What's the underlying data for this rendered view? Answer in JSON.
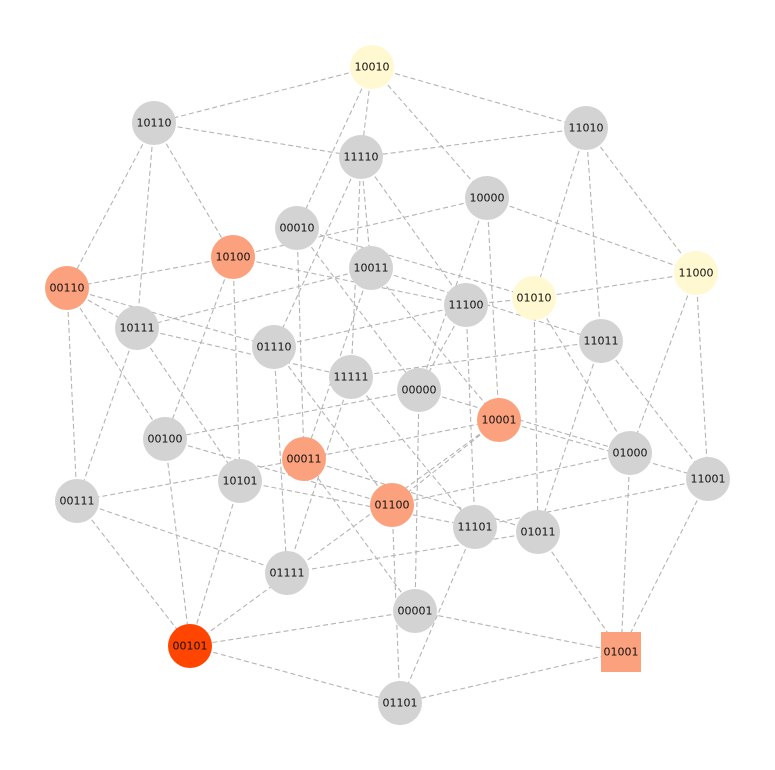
{
  "graph": {
    "colors": {
      "default": "#d3d3d3",
      "pale_yellow": "#fff8d0",
      "salmon": "#fca17d",
      "red_orange": "#ff4500",
      "edge": "#b4b4b4"
    },
    "nodes": [
      {
        "id": "10010",
        "label": "10010",
        "color": "pale_yellow",
        "shape": "circle"
      },
      {
        "id": "10110",
        "label": "10110",
        "color": "default",
        "shape": "circle"
      },
      {
        "id": "11010",
        "label": "11010",
        "color": "default",
        "shape": "circle"
      },
      {
        "id": "11110",
        "label": "11110",
        "color": "default",
        "shape": "circle"
      },
      {
        "id": "10000",
        "label": "10000",
        "color": "default",
        "shape": "circle"
      },
      {
        "id": "00010",
        "label": "00010",
        "color": "default",
        "shape": "circle"
      },
      {
        "id": "10100",
        "label": "10100",
        "color": "salmon",
        "shape": "circle"
      },
      {
        "id": "11000",
        "label": "11000",
        "color": "pale_yellow",
        "shape": "circle"
      },
      {
        "id": "10011",
        "label": "10011",
        "color": "default",
        "shape": "circle"
      },
      {
        "id": "00110",
        "label": "00110",
        "color": "salmon",
        "shape": "circle"
      },
      {
        "id": "01010",
        "label": "01010",
        "color": "pale_yellow",
        "shape": "circle"
      },
      {
        "id": "11100",
        "label": "11100",
        "color": "default",
        "shape": "circle"
      },
      {
        "id": "10111",
        "label": "10111",
        "color": "default",
        "shape": "circle"
      },
      {
        "id": "11011",
        "label": "11011",
        "color": "default",
        "shape": "circle"
      },
      {
        "id": "01110",
        "label": "01110",
        "color": "default",
        "shape": "circle"
      },
      {
        "id": "11111",
        "label": "11111",
        "color": "default",
        "shape": "circle"
      },
      {
        "id": "00000",
        "label": "00000",
        "color": "default",
        "shape": "circle"
      },
      {
        "id": "10001",
        "label": "10001",
        "color": "salmon",
        "shape": "circle"
      },
      {
        "id": "00100",
        "label": "00100",
        "color": "default",
        "shape": "circle"
      },
      {
        "id": "01000",
        "label": "01000",
        "color": "default",
        "shape": "circle"
      },
      {
        "id": "00011",
        "label": "00011",
        "color": "salmon",
        "shape": "circle"
      },
      {
        "id": "11001",
        "label": "11001",
        "color": "default",
        "shape": "circle"
      },
      {
        "id": "10101",
        "label": "10101",
        "color": "default",
        "shape": "circle"
      },
      {
        "id": "00111",
        "label": "00111",
        "color": "default",
        "shape": "circle"
      },
      {
        "id": "01100",
        "label": "01100",
        "color": "salmon",
        "shape": "circle"
      },
      {
        "id": "11101",
        "label": "11101",
        "color": "default",
        "shape": "circle"
      },
      {
        "id": "01011",
        "label": "01011",
        "color": "default",
        "shape": "circle"
      },
      {
        "id": "01111",
        "label": "01111",
        "color": "default",
        "shape": "circle"
      },
      {
        "id": "00001",
        "label": "00001",
        "color": "default",
        "shape": "circle"
      },
      {
        "id": "00101",
        "label": "00101",
        "color": "red_orange",
        "shape": "circle"
      },
      {
        "id": "01001",
        "label": "01001",
        "color": "salmon",
        "shape": "square"
      },
      {
        "id": "01101",
        "label": "01101",
        "color": "default",
        "shape": "circle"
      }
    ],
    "edges": [
      [
        "10010",
        "10110"
      ],
      [
        "10010",
        "11010"
      ],
      [
        "10010",
        "11110"
      ],
      [
        "10010",
        "10000"
      ],
      [
        "10010",
        "00010"
      ],
      [
        "10110",
        "11110"
      ],
      [
        "10110",
        "10100"
      ],
      [
        "10110",
        "00110"
      ],
      [
        "10110",
        "10111"
      ],
      [
        "11010",
        "11110"
      ],
      [
        "11010",
        "11000"
      ],
      [
        "11010",
        "01010"
      ],
      [
        "11010",
        "11011"
      ],
      [
        "11110",
        "10011"
      ],
      [
        "11110",
        "11100"
      ],
      [
        "11110",
        "01110"
      ],
      [
        "11110",
        "11111"
      ],
      [
        "10000",
        "11000"
      ],
      [
        "10000",
        "10100"
      ],
      [
        "10000",
        "00000"
      ],
      [
        "10000",
        "10001"
      ],
      [
        "00010",
        "01010"
      ],
      [
        "00010",
        "00000"
      ],
      [
        "00010",
        "00011"
      ],
      [
        "10100",
        "00110"
      ],
      [
        "10100",
        "11100"
      ],
      [
        "10100",
        "00100"
      ],
      [
        "10100",
        "10101"
      ],
      [
        "11000",
        "01010"
      ],
      [
        "11000",
        "01000"
      ],
      [
        "11000",
        "11001"
      ],
      [
        "10011",
        "10111"
      ],
      [
        "10011",
        "11011"
      ],
      [
        "10011",
        "10001"
      ],
      [
        "10011",
        "00011"
      ],
      [
        "00110",
        "10111"
      ],
      [
        "00110",
        "01110"
      ],
      [
        "00110",
        "00100"
      ],
      [
        "00110",
        "00111"
      ],
      [
        "01010",
        "11100"
      ],
      [
        "01010",
        "01000"
      ],
      [
        "01010",
        "01011"
      ],
      [
        "11100",
        "01110"
      ],
      [
        "11100",
        "00000"
      ],
      [
        "11100",
        "11101"
      ],
      [
        "10111",
        "00111"
      ],
      [
        "10111",
        "11111"
      ],
      [
        "10111",
        "10101"
      ],
      [
        "11011",
        "11111"
      ],
      [
        "11011",
        "11001"
      ],
      [
        "11011",
        "01011"
      ],
      [
        "01110",
        "01100"
      ],
      [
        "01110",
        "01111"
      ],
      [
        "11111",
        "11101"
      ],
      [
        "11111",
        "01111"
      ],
      [
        "00000",
        "00100"
      ],
      [
        "00000",
        "00001"
      ],
      [
        "00000",
        "01000"
      ],
      [
        "10001",
        "11001"
      ],
      [
        "10001",
        "00101"
      ],
      [
        "10001",
        "01100"
      ],
      [
        "00100",
        "00101"
      ],
      [
        "00100",
        "01100"
      ],
      [
        "01000",
        "01100"
      ],
      [
        "01000",
        "01001"
      ],
      [
        "00011",
        "10001"
      ],
      [
        "00011",
        "00111"
      ],
      [
        "00011",
        "01011"
      ],
      [
        "00011",
        "00001"
      ],
      [
        "11001",
        "11101"
      ],
      [
        "11001",
        "01001"
      ],
      [
        "10101",
        "00101"
      ],
      [
        "10101",
        "11101"
      ],
      [
        "00111",
        "01111"
      ],
      [
        "00111",
        "00101"
      ],
      [
        "01100",
        "01101"
      ],
      [
        "11101",
        "01101"
      ],
      [
        "01011",
        "01001"
      ],
      [
        "01011",
        "01111"
      ],
      [
        "00001",
        "00101"
      ],
      [
        "00001",
        "01001"
      ],
      [
        "00101",
        "01101"
      ],
      [
        "01001",
        "01101"
      ]
    ]
  }
}
